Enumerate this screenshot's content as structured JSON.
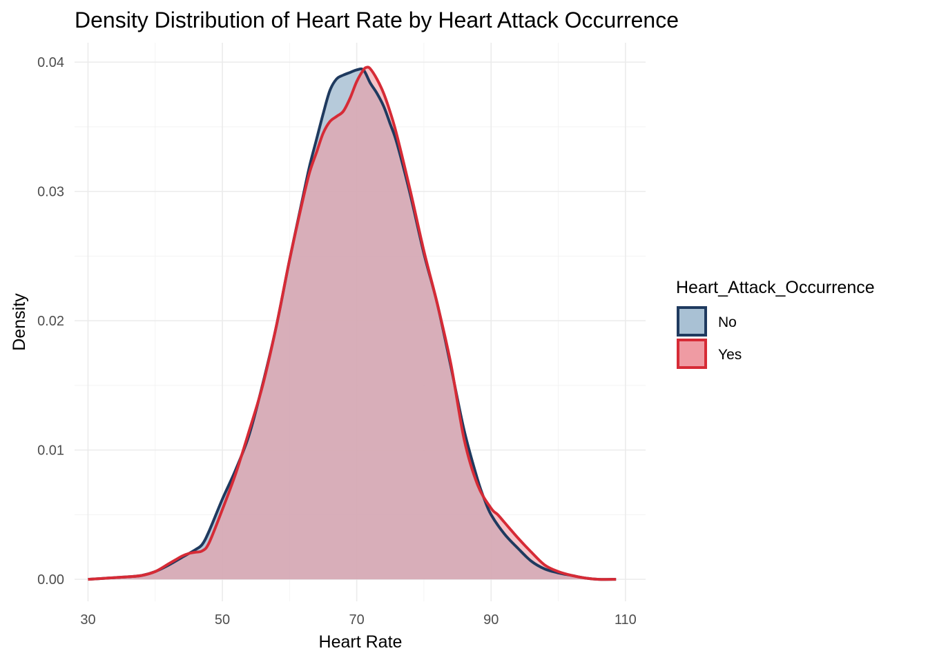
{
  "chart_data": {
    "type": "area",
    "title": "Density Distribution of Heart Rate by Heart Attack Occurrence",
    "xlabel": "Heart Rate",
    "ylabel": "Density",
    "xlim": [
      28,
      113
    ],
    "ylim": [
      -0.0017,
      0.0415
    ],
    "x_ticks": [
      30,
      50,
      70,
      90,
      110
    ],
    "x_tick_labels": [
      "30",
      "50",
      "70",
      "90",
      "110"
    ],
    "y_ticks": [
      0,
      0.01,
      0.02,
      0.03,
      0.04
    ],
    "y_tick_labels": [
      "0.00",
      "0.01",
      "0.02",
      "0.03",
      "0.04"
    ],
    "grid": true,
    "legend": {
      "title": "Heart_Attack_Occurrence",
      "position": "right"
    },
    "series": [
      {
        "name": "No",
        "line_color": "#1f3a5f",
        "fill_color": "#a9c1d4",
        "x": [
          30,
          33,
          36,
          38,
          40,
          42,
          44,
          46,
          47,
          48,
          50,
          52,
          54,
          56,
          58,
          60,
          62,
          63,
          64,
          65,
          66,
          67,
          68,
          69,
          70,
          71,
          72,
          73,
          74,
          75,
          76,
          78,
          80,
          82,
          84,
          86,
          88,
          89,
          90,
          92,
          94,
          96,
          98,
          100,
          102,
          104,
          106,
          108.6
        ],
        "y": [
          0.0,
          0.0001,
          0.0002,
          0.0003,
          0.0006,
          0.0011,
          0.0017,
          0.0023,
          0.0027,
          0.0037,
          0.0062,
          0.0085,
          0.0112,
          0.0151,
          0.0195,
          0.0247,
          0.0296,
          0.032,
          0.034,
          0.036,
          0.0378,
          0.0387,
          0.039,
          0.0392,
          0.0394,
          0.0394,
          0.0384,
          0.0376,
          0.0366,
          0.0352,
          0.0337,
          0.0297,
          0.0252,
          0.0213,
          0.0165,
          0.0115,
          0.0077,
          0.0062,
          0.005,
          0.0035,
          0.0024,
          0.0014,
          0.0008,
          0.0005,
          0.0003,
          0.0001,
          0.0,
          0.0
        ]
      },
      {
        "name": "Yes",
        "line_color": "#d62b36",
        "fill_color": "#ef9ba3",
        "x": [
          30,
          33,
          36,
          38,
          40,
          42,
          43,
          44,
          45,
          46,
          47,
          48,
          50,
          52,
          54,
          56,
          58,
          60,
          62,
          63,
          64,
          65,
          66,
          67,
          68,
          69,
          70,
          71,
          71.5,
          72,
          73,
          74,
          75,
          76,
          78,
          80,
          82,
          84,
          86,
          88,
          90,
          91,
          92,
          94,
          96,
          98,
          100,
          102,
          104,
          106,
          108.6
        ],
        "y": [
          0.0,
          0.0001,
          0.0002,
          0.0003,
          0.0006,
          0.0012,
          0.0015,
          0.0018,
          0.002,
          0.0021,
          0.0022,
          0.0028,
          0.0054,
          0.0082,
          0.0115,
          0.015,
          0.0195,
          0.0247,
          0.0294,
          0.0315,
          0.033,
          0.0345,
          0.0354,
          0.0358,
          0.0362,
          0.0372,
          0.0385,
          0.0394,
          0.0396,
          0.0395,
          0.0387,
          0.0376,
          0.0361,
          0.0343,
          0.03,
          0.0254,
          0.0213,
          0.0167,
          0.0108,
          0.0073,
          0.0055,
          0.005,
          0.0044,
          0.0032,
          0.0021,
          0.0011,
          0.0006,
          0.0003,
          0.0001,
          0.0,
          0.0
        ]
      }
    ]
  }
}
